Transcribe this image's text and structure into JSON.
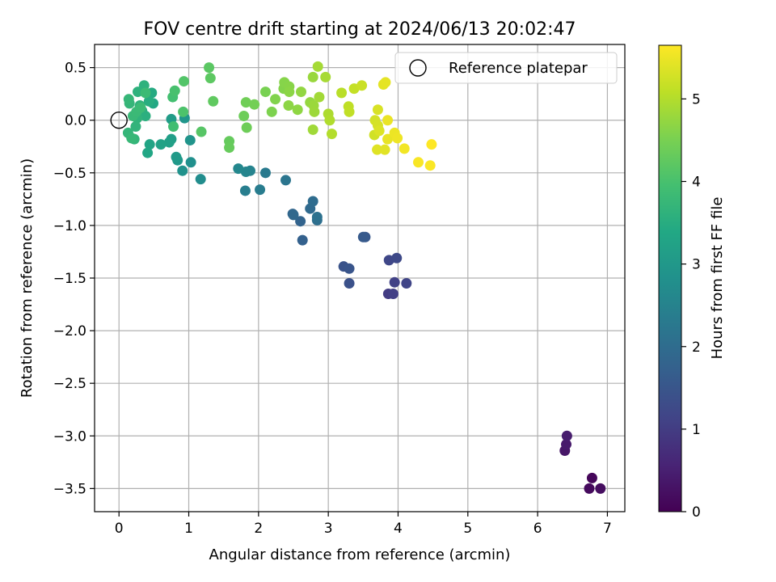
{
  "chart_data": {
    "type": "scatter",
    "title": "FOV centre drift starting at 2024/06/13 20:02:47",
    "xlabel": "Angular distance from reference (arcmin)",
    "ylabel": "Rotation from reference (arcmin)",
    "xlim": [
      -0.35,
      7.25
    ],
    "ylim": [
      -3.72,
      0.72
    ],
    "xticks": [
      0,
      1,
      2,
      3,
      4,
      5,
      6,
      7
    ],
    "xtick_labels": [
      "0",
      "1",
      "2",
      "3",
      "4",
      "5",
      "6",
      "7"
    ],
    "yticks": [
      0.5,
      0.0,
      -0.5,
      -1.0,
      -1.5,
      -2.0,
      -2.5,
      -3.0,
      -3.5
    ],
    "ytick_labels": [
      "0.5",
      "0.0",
      "−0.5",
      "−1.0",
      "−1.5",
      "−2.0",
      "−2.5",
      "−3.0",
      "−3.5"
    ],
    "grid": true,
    "colormap": "viridis",
    "colorbar": {
      "label": "Hours from first FF file",
      "range": [
        0,
        5.65
      ],
      "ticks": [
        0,
        1,
        2,
        3,
        4,
        5
      ],
      "tick_labels": [
        "0",
        "1",
        "2",
        "3",
        "4",
        "5"
      ]
    },
    "legend": {
      "position": "top-right",
      "entries": [
        "Reference platepar"
      ]
    },
    "reference": {
      "x": 0.0,
      "y": 0.0
    },
    "points": [
      [
        6.78,
        -3.4,
        0.1
      ],
      [
        6.74,
        -3.5,
        0.15
      ],
      [
        6.9,
        -3.5,
        0.2
      ],
      [
        6.39,
        -3.14,
        0.35
      ],
      [
        6.41,
        -3.08,
        0.4
      ],
      [
        6.42,
        -3.0,
        0.45
      ],
      [
        3.86,
        -1.65,
        1.0
      ],
      [
        3.93,
        -1.65,
        1.05
      ],
      [
        3.95,
        -1.54,
        1.1
      ],
      [
        4.12,
        -1.55,
        1.15
      ],
      [
        3.87,
        -1.33,
        1.2
      ],
      [
        3.98,
        -1.31,
        1.25
      ],
      [
        3.3,
        -1.55,
        1.4
      ],
      [
        3.22,
        -1.39,
        1.45
      ],
      [
        3.3,
        -1.41,
        1.5
      ],
      [
        3.53,
        -1.11,
        1.55
      ],
      [
        3.5,
        -1.11,
        1.6
      ],
      [
        2.63,
        -1.14,
        1.75
      ],
      [
        2.6,
        -0.96,
        1.8
      ],
      [
        2.49,
        -0.89,
        1.85
      ],
      [
        2.5,
        -0.9,
        1.9
      ],
      [
        2.74,
        -0.84,
        1.95
      ],
      [
        2.78,
        -0.77,
        2.0
      ],
      [
        2.84,
        -0.95,
        2.05
      ],
      [
        2.84,
        -0.92,
        2.1
      ],
      [
        2.39,
        -0.57,
        2.2
      ],
      [
        2.1,
        -0.5,
        2.3
      ],
      [
        2.02,
        -0.66,
        2.35
      ],
      [
        1.81,
        -0.67,
        2.4
      ],
      [
        1.88,
        -0.48,
        2.5
      ],
      [
        1.82,
        -0.49,
        2.55
      ],
      [
        1.71,
        -0.46,
        2.6
      ],
      [
        1.17,
        -0.56,
        2.75
      ],
      [
        1.03,
        -0.4,
        2.8
      ],
      [
        0.91,
        -0.48,
        2.85
      ],
      [
        1.02,
        -0.19,
        2.9
      ],
      [
        0.94,
        0.02,
        2.95
      ],
      [
        0.84,
        -0.38,
        3.0
      ],
      [
        0.82,
        -0.35,
        3.05
      ],
      [
        0.75,
        0.01,
        3.1
      ],
      [
        0.75,
        -0.18,
        3.15
      ],
      [
        0.72,
        -0.21,
        3.2
      ],
      [
        0.6,
        -0.23,
        3.25
      ],
      [
        0.44,
        -0.23,
        3.3
      ],
      [
        0.41,
        -0.31,
        3.35
      ],
      [
        0.49,
        0.16,
        3.4
      ],
      [
        0.47,
        0.26,
        3.45
      ],
      [
        0.43,
        0.18,
        3.5
      ],
      [
        0.38,
        0.04,
        3.55
      ],
      [
        0.33,
        0.09,
        3.55
      ],
      [
        0.36,
        0.33,
        3.6
      ],
      [
        0.27,
        0.27,
        3.6
      ],
      [
        0.3,
        0.14,
        3.62
      ],
      [
        0.26,
        0.02,
        3.64
      ],
      [
        0.24,
        -0.06,
        3.66
      ],
      [
        0.22,
        -0.18,
        3.68
      ],
      [
        0.13,
        -0.12,
        3.7
      ],
      [
        0.15,
        0.16,
        3.72
      ],
      [
        0.14,
        0.2,
        3.74
      ],
      [
        0.18,
        -0.17,
        3.76
      ],
      [
        0.2,
        0.04,
        3.78
      ],
      [
        0.25,
        0.08,
        3.8
      ],
      [
        0.31,
        0.12,
        3.82
      ],
      [
        0.38,
        0.26,
        3.84
      ],
      [
        0.78,
        -0.06,
        3.9
      ],
      [
        0.77,
        0.22,
        3.95
      ],
      [
        0.8,
        0.28,
        4.0
      ],
      [
        0.92,
        0.08,
        4.05
      ],
      [
        0.93,
        0.37,
        4.1
      ],
      [
        1.18,
        -0.11,
        4.15
      ],
      [
        1.29,
        0.5,
        4.2
      ],
      [
        1.31,
        0.4,
        4.22
      ],
      [
        1.35,
        0.18,
        4.25
      ],
      [
        1.58,
        -0.2,
        4.3
      ],
      [
        1.58,
        -0.26,
        4.32
      ],
      [
        1.79,
        0.04,
        4.38
      ],
      [
        1.83,
        -0.07,
        4.4
      ],
      [
        1.82,
        0.17,
        4.42
      ],
      [
        1.94,
        0.15,
        4.45
      ],
      [
        2.1,
        0.27,
        4.5
      ],
      [
        2.19,
        0.08,
        4.55
      ],
      [
        2.24,
        0.2,
        4.58
      ],
      [
        2.36,
        0.3,
        4.6
      ],
      [
        2.37,
        0.36,
        4.62
      ],
      [
        2.44,
        0.32,
        4.64
      ],
      [
        2.44,
        0.27,
        4.66
      ],
      [
        2.43,
        0.14,
        4.68
      ],
      [
        2.56,
        0.1,
        4.7
      ],
      [
        2.61,
        0.27,
        4.72
      ],
      [
        2.74,
        0.17,
        4.75
      ],
      [
        2.78,
        0.41,
        4.78
      ],
      [
        2.79,
        0.14,
        4.8
      ],
      [
        2.8,
        0.08,
        4.82
      ],
      [
        2.78,
        -0.09,
        4.84
      ],
      [
        2.87,
        0.22,
        4.86
      ],
      [
        2.85,
        0.51,
        4.88
      ],
      [
        2.96,
        0.41,
        4.9
      ],
      [
        3.0,
        0.06,
        4.95
      ],
      [
        3.02,
        0.0,
        4.98
      ],
      [
        3.05,
        -0.13,
        5.0
      ],
      [
        3.19,
        0.26,
        5.05
      ],
      [
        3.29,
        0.13,
        5.1
      ],
      [
        3.3,
        0.08,
        5.12
      ],
      [
        3.37,
        0.3,
        5.15
      ],
      [
        3.48,
        0.33,
        5.2
      ],
      [
        3.66,
        -0.14,
        5.25
      ],
      [
        3.67,
        0.0,
        5.28
      ],
      [
        3.71,
        -0.05,
        5.3
      ],
      [
        3.71,
        0.1,
        5.32
      ],
      [
        3.73,
        -0.1,
        5.35
      ],
      [
        3.7,
        -0.28,
        5.38
      ],
      [
        3.81,
        -0.28,
        5.4
      ],
      [
        3.79,
        0.34,
        5.42
      ],
      [
        3.82,
        0.36,
        5.44
      ],
      [
        3.85,
        -0.18,
        5.46
      ],
      [
        3.85,
        0.0,
        5.48
      ],
      [
        3.95,
        -0.12,
        5.5
      ],
      [
        3.99,
        -0.17,
        5.52
      ],
      [
        4.09,
        -0.27,
        5.55
      ],
      [
        4.29,
        -0.4,
        5.6
      ],
      [
        4.46,
        -0.43,
        5.62
      ],
      [
        4.48,
        -0.23,
        5.65
      ]
    ]
  }
}
